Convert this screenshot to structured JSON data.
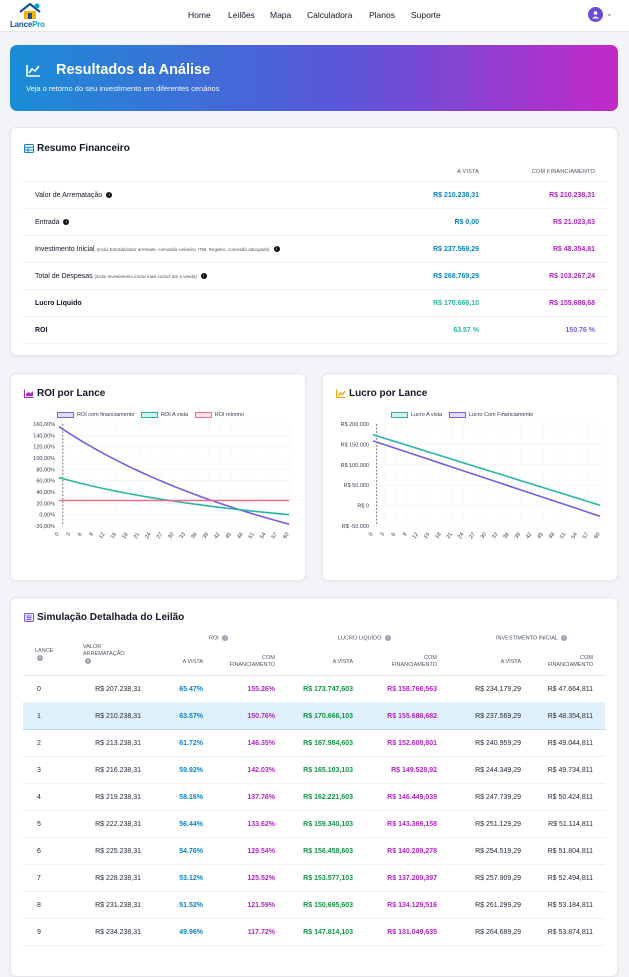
{
  "app": {
    "logo_text_a": "Lance",
    "logo_text_b": "Pro"
  },
  "nav": {
    "items": [
      "Home",
      "Leilões",
      "Mapa",
      "Calculadora",
      "Planos",
      "Suporte"
    ]
  },
  "hero": {
    "title": "Resultados da Análise",
    "subtitle": "Veja o retorno do seu investimento em diferentes cenários"
  },
  "summary": {
    "title": "Resumo Financeiro",
    "col_vista": "A VISTA",
    "col_fin": "COM FINANCIAMENTO",
    "rows": [
      {
        "label": "Valor de Arrematação",
        "note": "",
        "info": true,
        "vista": "R$ 210.238,31",
        "fin": "R$ 210.238,31"
      },
      {
        "label": "Entrada",
        "note": "",
        "info": true,
        "vista": "R$ 0,00",
        "fin": "R$ 21.023,83"
      },
      {
        "label": "Investimento Inicial",
        "note": "(Inclui Entrada/valor arremate, comissão Leiloeiro, ITBI, Registro, comissão advogado)",
        "info": true,
        "vista": "R$ 237.569,29",
        "fin": "R$ 48.354,81"
      },
      {
        "label": "Total de Despesas",
        "note": "(inclui Investimento inicial mais custos até a venda)",
        "info": true,
        "vista": "R$ 268.769,29",
        "fin": "R$ 103.267,24"
      },
      {
        "label": "Lucro Líquido",
        "note": "",
        "info": false,
        "vista": "R$ 170.666,10",
        "fin": "R$ 155.688,68"
      },
      {
        "label": "ROI",
        "note": "",
        "info": false,
        "vista": "63.57 %",
        "fin": "150.76 %"
      }
    ]
  },
  "roi_chart_title": "ROI por Lance",
  "lucro_chart_title": "Lucro por Lance",
  "colors": {
    "purple": "#7c5ce0",
    "teal": "#2bb5a6",
    "pink": "#ef6f8a",
    "blue": "#0b84c4",
    "magenta": "#b026c4",
    "green": "#159447"
  },
  "chart_data": [
    {
      "type": "line",
      "title": "ROI por Lance",
      "x": [
        0,
        3,
        6,
        9,
        12,
        15,
        18,
        21,
        24,
        27,
        30,
        33,
        36,
        39,
        42,
        45,
        48,
        51,
        54,
        57,
        60
      ],
      "y_ticks": [
        "160,00%",
        "140,00%",
        "120,00%",
        "100,00%",
        "80,00%",
        "60,00%",
        "40,00%",
        "20,00%",
        "0,00%",
        "-20,00%"
      ],
      "ylim": [
        -20,
        160
      ],
      "marker_x": 1,
      "series": [
        {
          "name": "ROI com financiamento",
          "color": "#7c5ce0",
          "values": [
            155.26,
            142.03,
            129.54,
            117.72,
            106.53,
            95.9,
            85.8,
            76.2,
            67.04,
            58.3,
            49.95,
            41.97,
            34.33,
            27.01,
            19.99,
            13.25,
            6.78,
            0.55,
            -5.44,
            -11.21,
            -16.78
          ]
        },
        {
          "name": "ROI A vista",
          "color": "#2bb5a6",
          "values": [
            65.47,
            59.92,
            54.76,
            49.96,
            45.47,
            41.27,
            37.33,
            33.62,
            30.13,
            26.84,
            23.72,
            20.78,
            17.98,
            15.33,
            12.81,
            10.41,
            8.12,
            5.94,
            3.86,
            1.87,
            -0.03
          ]
        },
        {
          "name": "ROI mínimo",
          "color": "#ef6f8a",
          "values": [
            25,
            25,
            25,
            25,
            25,
            25,
            25,
            25,
            25,
            25,
            25,
            25,
            25,
            25,
            25,
            25,
            25,
            25,
            25,
            25,
            25
          ]
        }
      ]
    },
    {
      "type": "line",
      "title": "Lucro por Lance",
      "x": [
        0,
        3,
        6,
        9,
        12,
        15,
        18,
        21,
        24,
        27,
        30,
        33,
        36,
        39,
        42,
        45,
        48,
        51,
        54,
        57,
        60
      ],
      "y_ticks": [
        "R$ 200.000",
        "R$ 150.000",
        "R$ 100.000",
        "R$ 50.000",
        "R$ 0",
        "R$ -50.000"
      ],
      "ylim": [
        -50000,
        200000
      ],
      "marker_x": 1,
      "series": [
        {
          "name": "Lucro A vista",
          "color": "#2bb5a6",
          "values": [
            173747,
            165103,
            156458,
            147814,
            139170,
            130525,
            121881,
            113237,
            104592,
            95948,
            87304,
            78659,
            70015,
            61371,
            52726,
            44082,
            35438,
            26793,
            18149,
            9505,
            860
          ]
        },
        {
          "name": "Lucro Com Financiamento",
          "color": "#7c5ce0",
          "values": [
            158768,
            149528,
            140289,
            131049,
            121810,
            112570,
            103331,
            94091,
            84852,
            75612,
            66373,
            57133,
            47894,
            38654,
            29415,
            20175,
            10936,
            1696,
            -7543,
            -16783,
            -26022
          ]
        }
      ]
    }
  ],
  "sim": {
    "title": "Simulação Detalhada do Leilão",
    "h_lance": "LANCE",
    "h_valor": "VALOR ARREMATAÇÃO",
    "h_roi": "ROI",
    "h_lucro": "LUCRO LIQUIDO",
    "h_inv": "INVESTIMENTO INICIAL",
    "h_vista": "A VISTA",
    "h_fin": "COM FINANCIAMENTO",
    "rows": [
      {
        "lance": "0",
        "valor": "R$ 207.238,31",
        "roi_v": "65.47%",
        "roi_f": "155.26%",
        "luc_v": "R$ 173.747,603",
        "luc_f": "R$ 158.768,563",
        "inv_v": "R$ 234.179,29",
        "inv_f": "R$ 47.664,811"
      },
      {
        "lance": "1",
        "valor": "R$ 210.238,31",
        "roi_v": "63.57%",
        "roi_f": "150.76%",
        "luc_v": "R$ 170.666,103",
        "luc_f": "R$ 155.688,682",
        "inv_v": "R$ 237.569,29",
        "inv_f": "R$ 48.354,811"
      },
      {
        "lance": "2",
        "valor": "R$ 213.238,31",
        "roi_v": "61.72%",
        "roi_f": "146.35%",
        "luc_v": "R$ 167.984,603",
        "luc_f": "R$ 152.608,801",
        "inv_v": "R$ 240.959,29",
        "inv_f": "R$ 49.044,811"
      },
      {
        "lance": "3",
        "valor": "R$ 216.238,31",
        "roi_v": "59.92%",
        "roi_f": "142.03%",
        "luc_v": "R$ 165.103,103",
        "luc_f": "R$ 149.528,92",
        "inv_v": "R$ 244.349,29",
        "inv_f": "R$ 49.734,811"
      },
      {
        "lance": "4",
        "valor": "R$ 219.238,31",
        "roi_v": "58.16%",
        "roi_f": "137.76%",
        "luc_v": "R$ 162.221,603",
        "luc_f": "R$ 146.449,039",
        "inv_v": "R$ 247.739,29",
        "inv_f": "R$ 50.424,811"
      },
      {
        "lance": "5",
        "valor": "R$ 222.238,31",
        "roi_v": "56.44%",
        "roi_f": "133.62%",
        "luc_v": "R$ 159.340,103",
        "luc_f": "R$ 143.369,158",
        "inv_v": "R$ 251.129,29",
        "inv_f": "R$ 51.114,811"
      },
      {
        "lance": "6",
        "valor": "R$ 225.238,31",
        "roi_v": "54.76%",
        "roi_f": "129.54%",
        "luc_v": "R$ 156.458,603",
        "luc_f": "R$ 140.289,278",
        "inv_v": "R$ 254.519,29",
        "inv_f": "R$ 51.804,811"
      },
      {
        "lance": "7",
        "valor": "R$ 228.238,31",
        "roi_v": "53.12%",
        "roi_f": "125.52%",
        "luc_v": "R$ 153.577,103",
        "luc_f": "R$ 137.209,397",
        "inv_v": "R$ 257.909,29",
        "inv_f": "R$ 52.494,811"
      },
      {
        "lance": "8",
        "valor": "R$ 231.238,31",
        "roi_v": "51.52%",
        "roi_f": "121.59%",
        "luc_v": "R$ 150.695,603",
        "luc_f": "R$ 134.129,516",
        "inv_v": "R$ 261.299,29",
        "inv_f": "R$ 53.184,811"
      },
      {
        "lance": "9",
        "valor": "R$ 234.238,31",
        "roi_v": "49.96%",
        "roi_f": "117.72%",
        "luc_v": "R$ 147.814,103",
        "luc_f": "R$ 131.049,635",
        "inv_v": "R$ 264.689,29",
        "inv_f": "R$ 53.874,811"
      }
    ]
  }
}
